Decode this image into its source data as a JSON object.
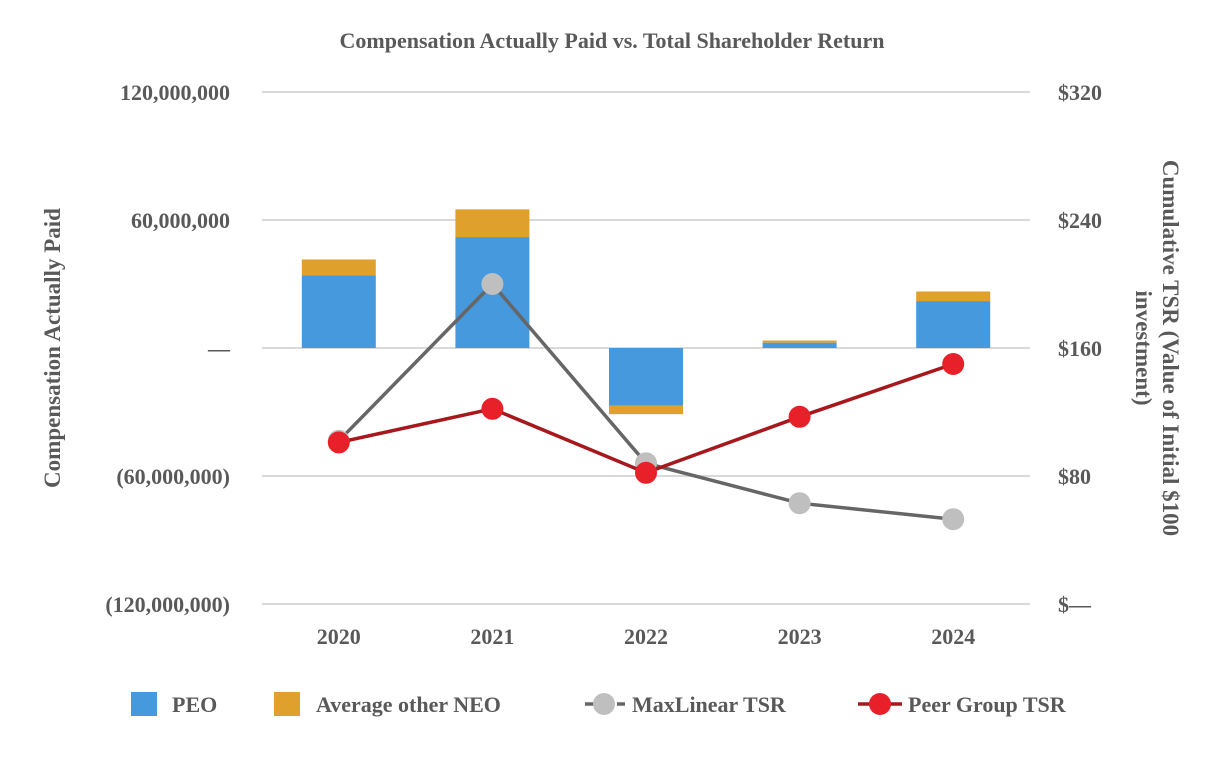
{
  "chart_data": {
    "type": "bar",
    "title": "Compensation Actually Paid vs. Total Shareholder Return",
    "categories": [
      "2020",
      "2021",
      "2022",
      "2023",
      "2024"
    ],
    "ylabel": "Compensation Actually Paid",
    "y2label_line1": "Cumulative TSR (Value of Initial $100",
    "y2label_line2": "investment)",
    "ylim": [
      -120000000,
      120000000
    ],
    "y2lim": [
      0,
      320
    ],
    "y_ticks": [
      {
        "value": 120000000,
        "label": "120,000,000"
      },
      {
        "value": 60000000,
        "label": "60,000,000"
      },
      {
        "value": 0,
        "label": "—"
      },
      {
        "value": -60000000,
        "label": "(60,000,000)"
      },
      {
        "value": -120000000,
        "label": "(120,000,000)"
      }
    ],
    "y2_ticks": [
      {
        "value": 320,
        "label": "$320"
      },
      {
        "value": 240,
        "label": "$240"
      },
      {
        "value": 160,
        "label": "$160"
      },
      {
        "value": 80,
        "label": "$80"
      },
      {
        "value": 0,
        "label": "$—"
      }
    ],
    "bar_series": [
      {
        "name": "PEO",
        "color": "#4699dd",
        "values": [
          34000000,
          52000000,
          -27000000,
          2500000,
          22000000
        ]
      },
      {
        "name": "Average other NEO",
        "color": "#e0a12c",
        "values": [
          7500000,
          13000000,
          -4000000,
          1000000,
          4500000
        ]
      }
    ],
    "line_series": [
      {
        "name": "MaxLinear TSR",
        "color": "#bfbfbf",
        "line_color": "#666666",
        "dashed_legend": true,
        "values": [
          102,
          200,
          88,
          63,
          53
        ]
      },
      {
        "name": "Peer Group TSR",
        "color": "#e8202a",
        "line_color": "#a6181c",
        "dashed_legend": false,
        "values": [
          101,
          122,
          82,
          117,
          150
        ]
      }
    ],
    "grid": true,
    "legend_position": "bottom"
  }
}
